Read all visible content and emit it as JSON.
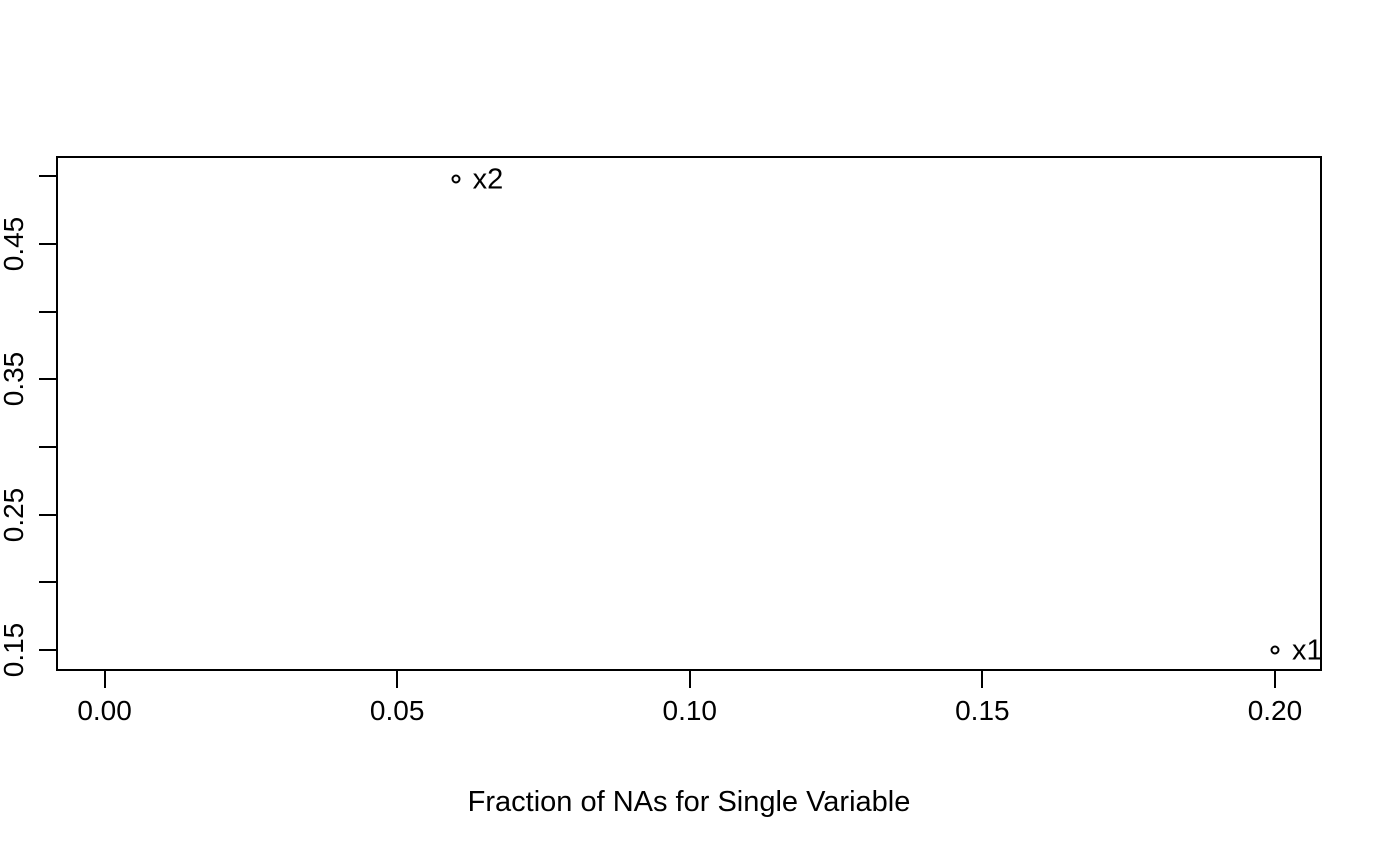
{
  "figure": {
    "background": "#ffffff",
    "ink_color": "#000000"
  },
  "chart_data": {
    "type": "scatter",
    "title": "",
    "xlabel": "Fraction of NAs for Single Variable",
    "ylabel": "",
    "grid": false,
    "legend_position": null,
    "marker": "open-circle",
    "xlim": [
      -0.00813,
      0.20787
    ],
    "ylim": [
      0.13523,
      0.51411
    ],
    "x_ticks": [
      {
        "value": 0.0,
        "label": "0.00"
      },
      {
        "value": 0.05,
        "label": "0.05"
      },
      {
        "value": 0.1,
        "label": "0.10"
      },
      {
        "value": 0.15,
        "label": "0.15"
      },
      {
        "value": 0.2,
        "label": "0.20"
      }
    ],
    "y_ticks": [
      {
        "value": 0.15,
        "label": "0.15"
      },
      {
        "value": 0.2,
        "label": ""
      },
      {
        "value": 0.25,
        "label": "0.25"
      },
      {
        "value": 0.3,
        "label": ""
      },
      {
        "value": 0.35,
        "label": "0.35"
      },
      {
        "value": 0.4,
        "label": ""
      },
      {
        "value": 0.45,
        "label": "0.45"
      },
      {
        "value": 0.5,
        "label": ""
      }
    ],
    "points": [
      {
        "label": "x2",
        "x": 0.06,
        "y": 0.498
      },
      {
        "label": "x1",
        "x": 0.2,
        "y": 0.15
      }
    ]
  }
}
